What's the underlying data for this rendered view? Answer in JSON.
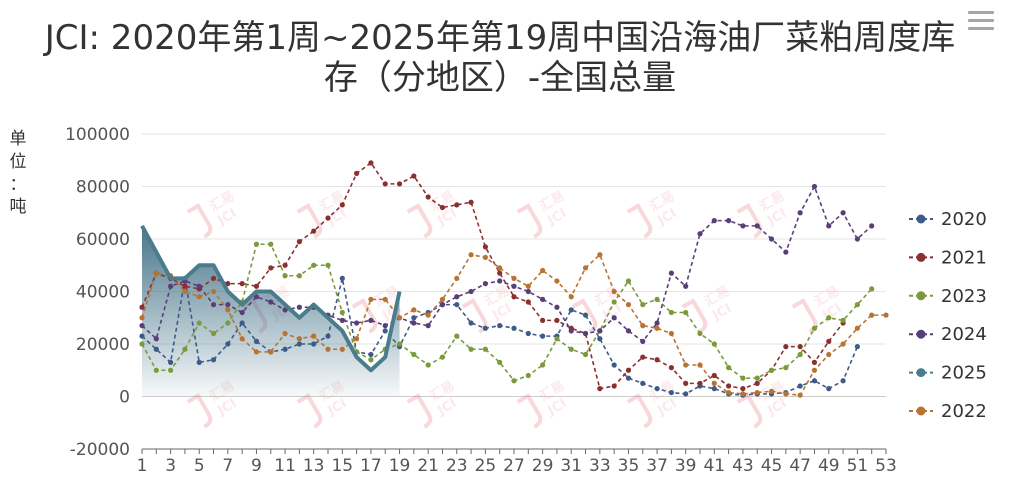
{
  "toolbar": {
    "menu_icon": "hamburger-menu-icon"
  },
  "chart_data": {
    "type": "line",
    "title": "JCI: 2020年第1周~2025年第19周中国沿海油厂菜粕周度库存（分地区）-全国总量",
    "xlabel": "",
    "ylabel": "单位：吨",
    "xlim": [
      1,
      53
    ],
    "ylim": [
      -20000,
      100000
    ],
    "yticks": [
      -20000,
      0,
      20000,
      40000,
      60000,
      80000,
      100000
    ],
    "xticks": [
      1,
      3,
      5,
      7,
      9,
      11,
      13,
      15,
      17,
      19,
      21,
      23,
      25,
      27,
      29,
      31,
      33,
      35,
      37,
      39,
      41,
      43,
      45,
      47,
      49,
      51,
      53
    ],
    "grid": true,
    "legend_position": "right",
    "watermark_text": [
      "汇易",
      "JCI"
    ],
    "series": [
      {
        "name": "2020",
        "color": "#3d5a88",
        "values": [
          23000,
          18000,
          13000,
          45000,
          13000,
          14000,
          20000,
          28000,
          21000,
          17000,
          18000,
          20000,
          20000,
          23000,
          45000,
          17000,
          16000,
          25000,
          19000,
          30000,
          32000,
          35000,
          35000,
          28000,
          26000,
          27000,
          26000,
          24000,
          23000,
          23000,
          33000,
          31000,
          22000,
          12000,
          7000,
          5000,
          3000,
          1500,
          1000,
          4000,
          3000,
          1000,
          500,
          1000,
          1000,
          1500,
          4000,
          6000,
          3000,
          6000,
          19000
        ]
      },
      {
        "name": "2021",
        "color": "#8b3030",
        "values": [
          34000,
          47000,
          45000,
          42000,
          41000,
          45000,
          43000,
          43000,
          42000,
          49000,
          50000,
          59000,
          63000,
          68000,
          73000,
          85000,
          89000,
          81000,
          81000,
          84000,
          76000,
          72000,
          73000,
          74000,
          57000,
          47000,
          38000,
          36000,
          29000,
          29000,
          26000,
          24000,
          3000,
          4000,
          10000,
          15000,
          14000,
          11000,
          5000,
          5000,
          8000,
          4000,
          3000,
          5000,
          10000,
          19000,
          19000,
          13000,
          21000,
          28000
        ]
      },
      {
        "name": "2023",
        "color": "#7a9a3c",
        "values": [
          20000,
          10000,
          10000,
          18000,
          28000,
          24000,
          28000,
          36000,
          58000,
          58000,
          46000,
          46000,
          50000,
          50000,
          32000,
          17000,
          14000,
          18000,
          20000,
          16000,
          12000,
          15000,
          23000,
          18000,
          18000,
          13000,
          6000,
          8000,
          12000,
          22000,
          18000,
          16000,
          25000,
          36000,
          44000,
          35000,
          37000,
          32000,
          32000,
          24000,
          20000,
          11000,
          7000,
          7000,
          10000,
          11000,
          16000,
          26000,
          30000,
          29000,
          35000,
          41000
        ]
      },
      {
        "name": "2024",
        "color": "#5a3e78",
        "values": [
          27000,
          22000,
          42000,
          44000,
          42000,
          35000,
          35000,
          32000,
          38000,
          36000,
          33000,
          34000,
          34000,
          31000,
          29000,
          28000,
          29000,
          27000,
          30000,
          28000,
          27000,
          35000,
          38000,
          40000,
          43000,
          44000,
          42000,
          40000,
          37000,
          34000,
          25000,
          24000,
          25000,
          30000,
          25000,
          21000,
          28000,
          47000,
          42000,
          62000,
          67000,
          67000,
          65000,
          65000,
          60000,
          55000,
          70000,
          80000,
          65000,
          70000,
          60000,
          65000
        ]
      },
      {
        "name": "2025",
        "color": "#4a7d8c",
        "values": [
          65000,
          55000,
          45000,
          45000,
          50000,
          50000,
          40000,
          35000,
          40000,
          40000,
          35000,
          30000,
          35000,
          30000,
          25000,
          15000,
          10000,
          15000,
          40000
        ]
      },
      {
        "name": "2022",
        "color": "#b87333",
        "values": [
          30000,
          47000,
          46000,
          40000,
          38000,
          40000,
          33000,
          22000,
          17000,
          17000,
          24000,
          22000,
          23000,
          18000,
          18000,
          22000,
          37000,
          37000,
          30000,
          33000,
          31000,
          37000,
          45000,
          54000,
          53000,
          49000,
          45000,
          42000,
          48000,
          44000,
          38000,
          49000,
          54000,
          40000,
          35000,
          27000,
          26000,
          24000,
          12000,
          12000,
          5000,
          1500,
          1000,
          1500,
          2000,
          1000,
          500,
          10000,
          16000,
          20000,
          26000,
          31000,
          31000
        ]
      }
    ]
  }
}
